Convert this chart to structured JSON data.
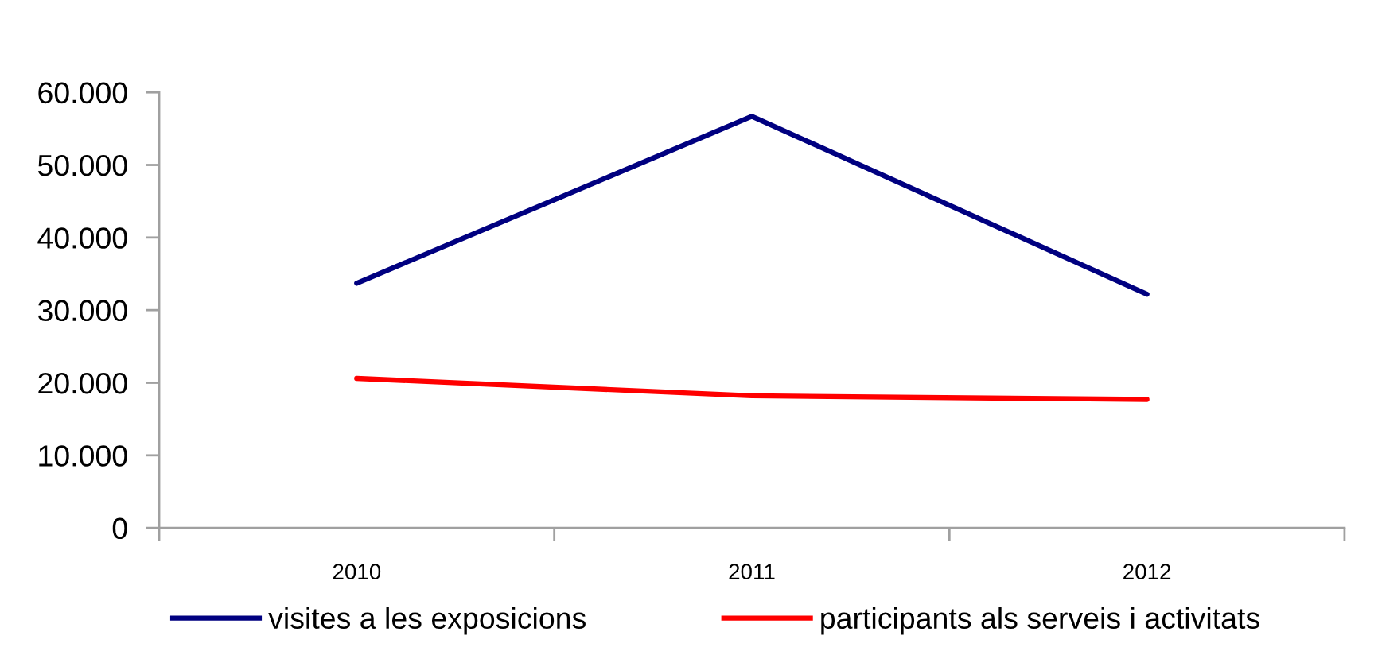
{
  "chart_data": {
    "type": "line",
    "categories": [
      "2010",
      "2011",
      "2012"
    ],
    "series": [
      {
        "name": "visites a les exposicions",
        "color": "#000080",
        "values": [
          33700,
          56700,
          32200
        ]
      },
      {
        "name": "participants als serveis i activitats",
        "color": "#ff0000",
        "values": [
          20600,
          18200,
          17700
        ]
      }
    ],
    "ylim": [
      0,
      60000
    ],
    "yticks": [
      0,
      {
        "value": 10000,
        "label": "10.000"
      },
      {
        "value": 20000,
        "label": "20.000"
      },
      {
        "value": 30000,
        "label": "30.000"
      },
      {
        "value": 40000,
        "label": "40.000"
      },
      {
        "value": 50000,
        "label": "50.000"
      },
      {
        "value": 60000,
        "label": "60.000"
      }
    ],
    "grid": false,
    "legend": "bottom",
    "marker": "none",
    "line_style": "solid"
  }
}
